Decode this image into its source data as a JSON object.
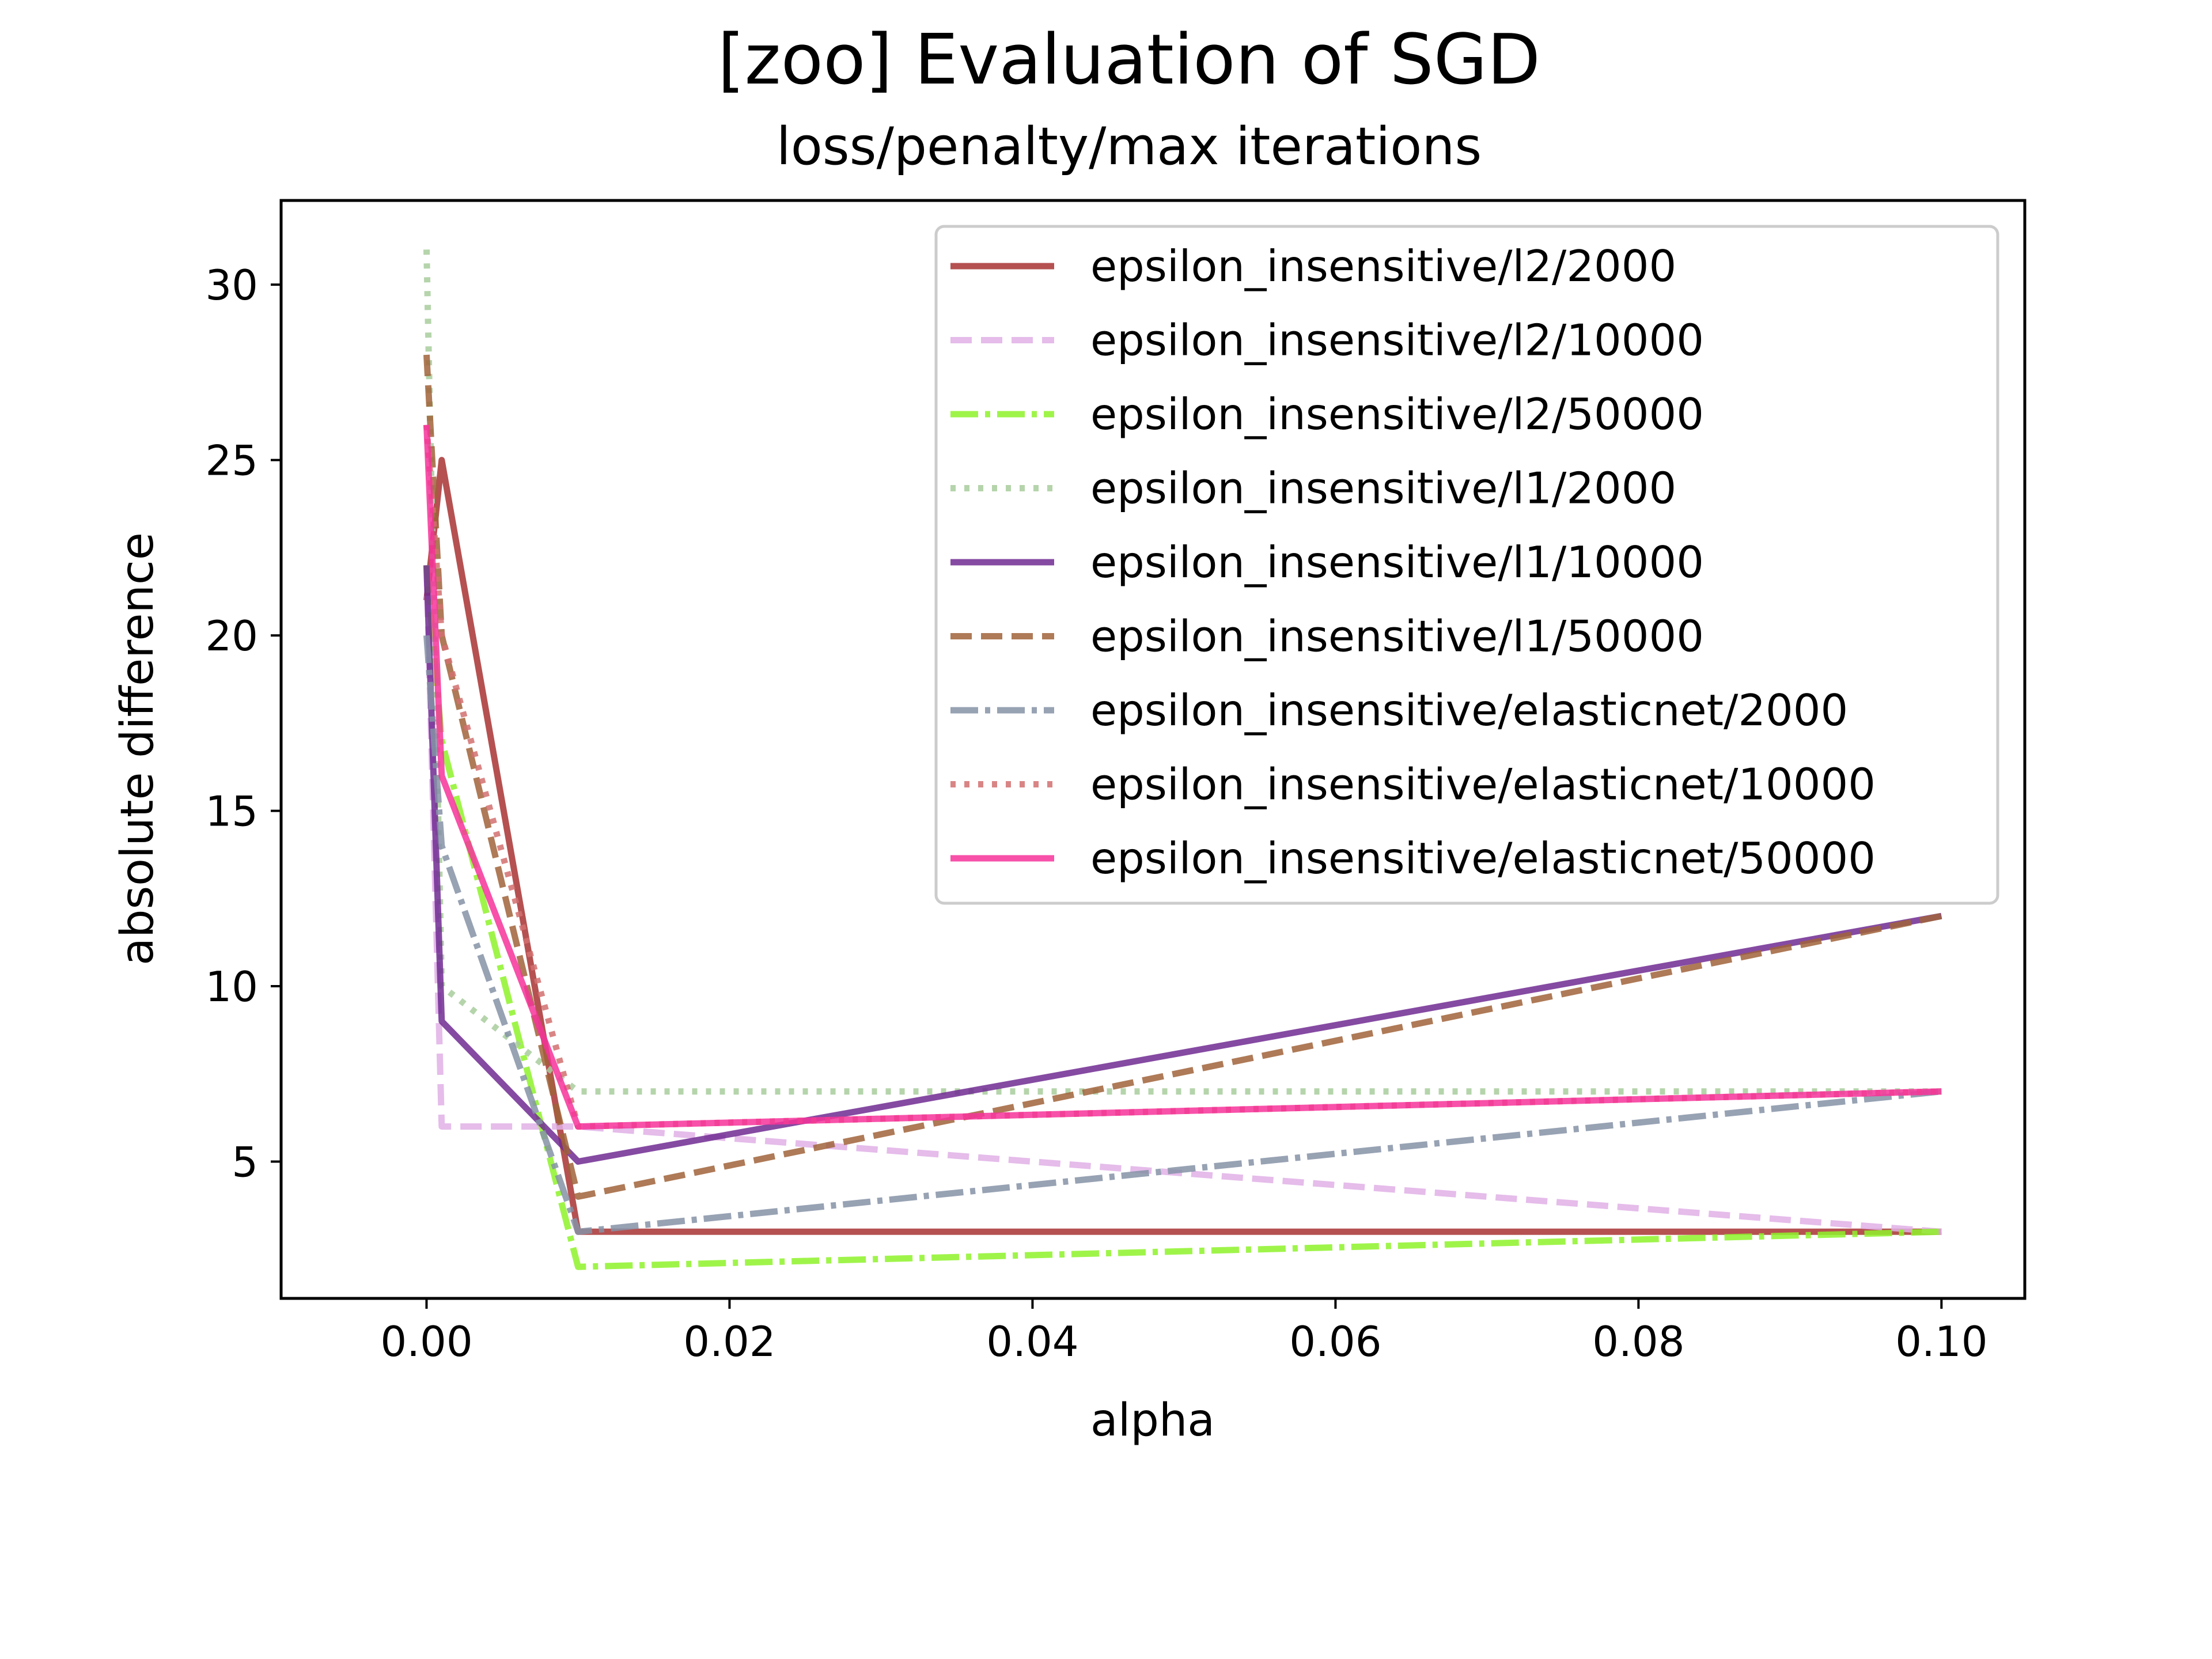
{
  "chart_data": {
    "type": "line",
    "title": "[zoo] Evaluation of SGD",
    "subtitle": "loss/penalty/max iterations",
    "xlabel": "alpha",
    "ylabel": "absolute difference",
    "xlim": [
      -0.0096,
      0.1055
    ],
    "ylim": [
      1.1,
      32.4
    ],
    "xticks": [
      0.0,
      0.02,
      0.04,
      0.06,
      0.08,
      0.1
    ],
    "xtick_labels": [
      "0.00",
      "0.02",
      "0.04",
      "0.06",
      "0.08",
      "0.10"
    ],
    "yticks": [
      5,
      10,
      15,
      20,
      25,
      30
    ],
    "ytick_labels": [
      "5",
      "10",
      "15",
      "20",
      "25",
      "30"
    ],
    "grid": false,
    "legend_position": "top-right",
    "x": [
      0.0,
      0.001,
      0.01,
      0.1
    ],
    "series": [
      {
        "name": "epsilon_insensitive/l2/2000",
        "values": [
          21,
          25,
          3,
          3
        ],
        "color": "#a83232",
        "dash": "solid"
      },
      {
        "name": "epsilon_insensitive/l2/10000",
        "values": [
          22,
          6,
          6,
          3
        ],
        "color": "#e0b0e6",
        "dash": "dashed"
      },
      {
        "name": "epsilon_insensitive/l2/50000",
        "values": [
          22,
          17,
          2,
          3
        ],
        "color": "#8ef22a",
        "dash": "dashdot"
      },
      {
        "name": "epsilon_insensitive/l1/2000",
        "values": [
          31,
          10,
          7,
          7
        ],
        "color": "#a8cc9c",
        "dash": "dotted"
      },
      {
        "name": "epsilon_insensitive/l1/10000",
        "values": [
          22,
          9,
          5,
          12
        ],
        "color": "#702a92",
        "dash": "solid"
      },
      {
        "name": "epsilon_insensitive/l1/50000",
        "values": [
          28,
          20,
          4,
          12
        ],
        "color": "#a0633a",
        "dash": "dashed"
      },
      {
        "name": "epsilon_insensitive/elasticnet/2000",
        "values": [
          20,
          14,
          3,
          7
        ],
        "color": "#8592a6",
        "dash": "dashdot"
      },
      {
        "name": "epsilon_insensitive/elasticnet/10000",
        "values": [
          26,
          20,
          6,
          7
        ],
        "color": "#d27070",
        "dash": "dotted"
      },
      {
        "name": "epsilon_insensitive/elasticnet/50000",
        "values": [
          26,
          16,
          6,
          7
        ],
        "color": "#f6339a",
        "dash": "solid"
      }
    ]
  }
}
